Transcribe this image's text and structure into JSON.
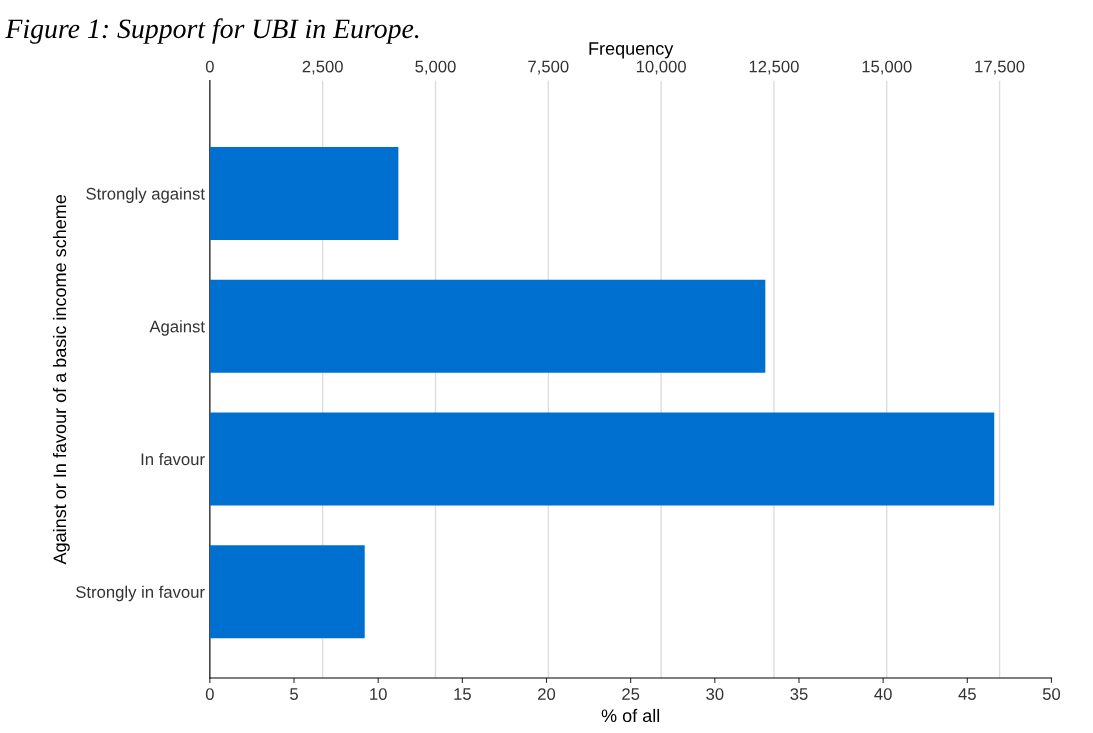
{
  "chart_data": {
    "type": "bar",
    "orientation": "horizontal",
    "title": "Figure 1: Support for UBI in Europe.",
    "categories": [
      "Strongly against",
      "Against",
      "In favour",
      "Strongly in favour"
    ],
    "values": [
      11.2,
      33.0,
      46.6,
      9.2
    ],
    "color": "#0070d0",
    "xlabel": "% of all",
    "ylabel": "Against or In favour of a basic income scheme",
    "x2label": "Frequency",
    "xlim": [
      0,
      50
    ],
    "xticks": [
      0,
      5,
      10,
      15,
      20,
      25,
      30,
      35,
      40,
      45,
      50
    ],
    "x2lim": [
      0,
      18650
    ],
    "x2ticks": [
      {
        "value": 0,
        "label": "0"
      },
      {
        "value": 2500,
        "label": "2,500"
      },
      {
        "value": 5000,
        "label": "5,000"
      },
      {
        "value": 7500,
        "label": "7,500"
      },
      {
        "value": 10000,
        "label": "10,000"
      },
      {
        "value": 12500,
        "label": "12,500"
      },
      {
        "value": 15000,
        "label": "15,000"
      },
      {
        "value": 17500,
        "label": "17,500"
      }
    ],
    "grid": "x"
  }
}
